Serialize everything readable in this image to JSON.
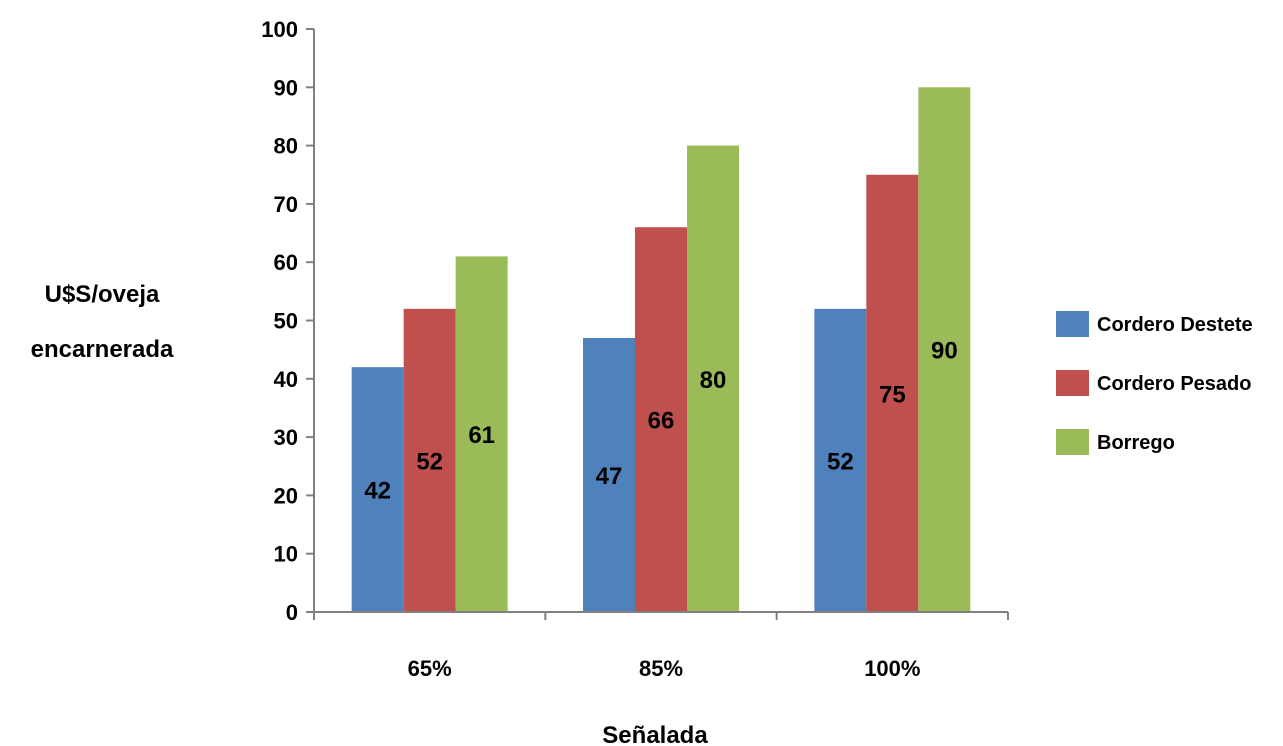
{
  "chart_data": {
    "type": "bar",
    "categories": [
      "65%",
      "85%",
      "100%"
    ],
    "series": [
      {
        "name": "Cordero Destete",
        "values": [
          42,
          47,
          52
        ],
        "labels": [
          "42",
          "47",
          "52"
        ],
        "color": "#4F81BD"
      },
      {
        "name": "Cordero Pesado",
        "values": [
          52,
          66,
          75
        ],
        "labels": [
          "52",
          "66",
          "75"
        ],
        "color": "#C0504D"
      },
      {
        "name": "Borrego",
        "values": [
          61,
          80,
          90
        ],
        "labels": [
          "61",
          "80",
          "90"
        ],
        "color": "#9BBB59"
      }
    ],
    "xlabel": "Señalada",
    "ylabel_lines": [
      "U$S/oveja",
      "encarnerada"
    ],
    "ylim": [
      0,
      100
    ],
    "yticks": [
      0,
      10,
      20,
      30,
      40,
      50,
      60,
      70,
      80,
      90,
      100
    ],
    "ytick_labels": [
      "0",
      "10",
      "20",
      "30",
      "40",
      "50",
      "60",
      "70",
      "80",
      "90",
      "100"
    ],
    "grid": false,
    "legend_position": "right",
    "axis_color": "#808080"
  }
}
